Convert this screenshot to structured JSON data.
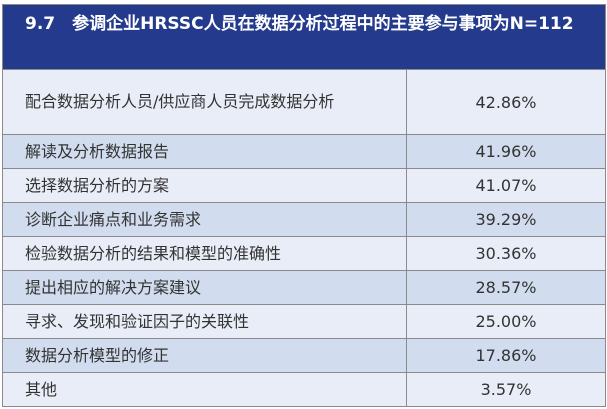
{
  "title": "9.7　参调企业HRSSC人员在数据分析过程中的主要参与事项为N=112",
  "colors": {
    "header": "#243a8c",
    "row_light": "#e8edf7",
    "row_dark": "#d1dcee"
  },
  "rows": [
    {
      "item": "配合数据分析人员/供应商人员完成数据分析",
      "value": "42.86%"
    },
    {
      "item": "解读及分析数据报告",
      "value": "41.96%"
    },
    {
      "item": "选择数据分析的方案",
      "value": "41.07%"
    },
    {
      "item": "诊断企业痛点和业务需求",
      "value": "39.29%"
    },
    {
      "item": "检验数据分析的结果和模型的准确性",
      "value": "30.36%"
    },
    {
      "item": "提出相应的解决方案建议",
      "value": "28.57%"
    },
    {
      "item": "寻求、发现和验证因子的关联性",
      "value": "25.00%"
    },
    {
      "item": "数据分析模型的修正",
      "value": "17.86%"
    },
    {
      "item": "其他",
      "value": "3.57%"
    }
  ]
}
